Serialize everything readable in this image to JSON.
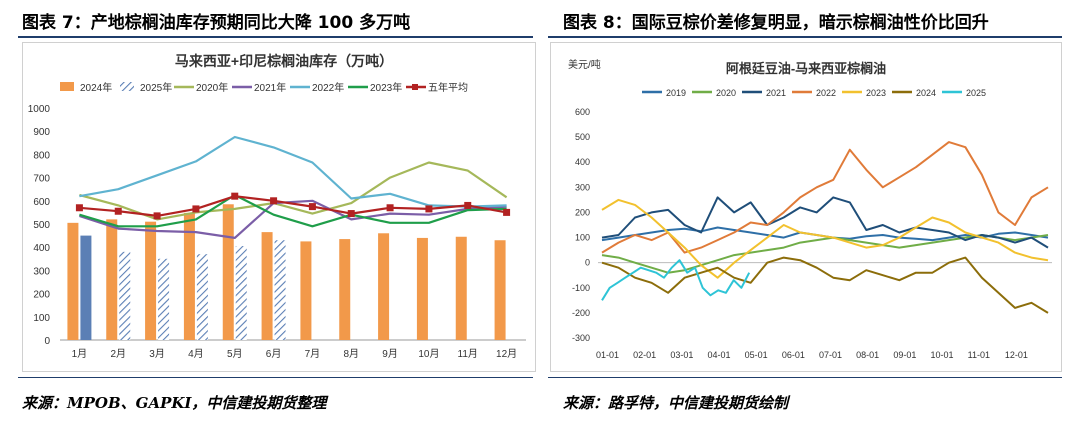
{
  "left": {
    "figure_title": "图表 7：产地棕榈油库存预期同比大降 100 多万吨",
    "source": "来源：MPOB、GAPKI，中信建投期货整理"
  },
  "right": {
    "figure_title": "图表 8：国际豆棕价差修复明显，暗示棕榈油性价比回升",
    "source": "来源：路孚特，中信建投期货绘制"
  },
  "colors": {
    "2024": "#f2994a",
    "2025": "#5b7fb5",
    "2020": "#a5b85a",
    "2021": "#7b5ea7",
    "2022": "#5fb3d0",
    "2023": "#1f9e4a",
    "avg": "#b22222",
    "rule": "#1f3d6b",
    "s2019": "#2e6fa7",
    "s2020": "#70ad47",
    "s2021": "#1f4e79",
    "s2022": "#e07b39",
    "s2023": "#f2c12e",
    "s2024": "#8c6d0a",
    "s2025": "#2ec4d6"
  },
  "chart_data": [
    {
      "type": "bar",
      "title": "马来西亚+印尼棕榈油库存（万吨）",
      "categories": [
        "1月",
        "2月",
        "3月",
        "4月",
        "5月",
        "6月",
        "7月",
        "8月",
        "9月",
        "10月",
        "11月",
        "12月"
      ],
      "ylim": [
        0,
        1000
      ],
      "yticks": [
        0,
        100,
        200,
        300,
        400,
        500,
        600,
        700,
        800,
        900,
        1000
      ],
      "bar_series": [
        {
          "name": "2024年",
          "values": [
            505,
            520,
            510,
            548,
            585,
            465,
            425,
            435,
            460,
            440,
            445,
            430
          ]
        },
        {
          "name": "2025年",
          "values": [
            450,
            380,
            350,
            370,
            405,
            430,
            null,
            null,
            null,
            null,
            null,
            null
          ],
          "hatched": true,
          "highlight_first": true
        }
      ],
      "line_series": [
        {
          "name": "2020年",
          "values": [
            625,
            580,
            520,
            550,
            565,
            590,
            545,
            590,
            700,
            765,
            730,
            615
          ]
        },
        {
          "name": "2021年",
          "values": [
            535,
            480,
            470,
            465,
            440,
            590,
            600,
            520,
            545,
            540,
            565,
            575
          ]
        },
        {
          "name": "2022年",
          "values": [
            620,
            650,
            710,
            770,
            875,
            830,
            765,
            610,
            630,
            580,
            575,
            580
          ]
        },
        {
          "name": "2023年",
          "values": [
            540,
            490,
            490,
            520,
            625,
            540,
            490,
            540,
            505,
            505,
            560,
            565
          ]
        },
        {
          "name": "五年平均",
          "values": [
            570,
            555,
            535,
            565,
            620,
            600,
            575,
            545,
            570,
            565,
            580,
            550
          ],
          "markers": true
        }
      ],
      "legend_placement": "top",
      "grid": false
    },
    {
      "type": "line",
      "title": "阿根廷豆油-马来西亚棕榈油",
      "ylabel": "美元/吨",
      "ylim": [
        -300,
        600
      ],
      "yticks": [
        -300,
        -200,
        -100,
        0,
        100,
        200,
        300,
        400,
        500,
        600
      ],
      "x_ticks": [
        "01-01",
        "02-01",
        "03-01",
        "04-01",
        "05-01",
        "06-01",
        "07-01",
        "08-01",
        "09-01",
        "10-01",
        "11-01",
        "12-01"
      ],
      "series": [
        {
          "name": "2019",
          "values": [
            90,
            100,
            110,
            120,
            130,
            135,
            125,
            140,
            130,
            120,
            110,
            100,
            120,
            110,
            100,
            95,
            105,
            110,
            100,
            95,
            90,
            100,
            110,
            100,
            115,
            120,
            110,
            100
          ]
        },
        {
          "name": "2020",
          "values": [
            30,
            20,
            0,
            -20,
            -40,
            -30,
            -10,
            10,
            30,
            40,
            50,
            60,
            80,
            90,
            100,
            90,
            80,
            70,
            60,
            70,
            80,
            90,
            100,
            110,
            100,
            90,
            100,
            110
          ]
        },
        {
          "name": "2021",
          "values": [
            100,
            110,
            180,
            200,
            210,
            150,
            120,
            260,
            200,
            240,
            150,
            180,
            220,
            200,
            260,
            240,
            130,
            150,
            120,
            140,
            130,
            120,
            90,
            110,
            100,
            80,
            100,
            60
          ]
        },
        {
          "name": "2022",
          "values": [
            40,
            80,
            110,
            90,
            120,
            40,
            60,
            90,
            120,
            160,
            150,
            200,
            260,
            300,
            330,
            450,
            370,
            300,
            340,
            380,
            430,
            480,
            460,
            350,
            200,
            150,
            260,
            300
          ]
        },
        {
          "name": "2023",
          "values": [
            210,
            250,
            230,
            180,
            120,
            60,
            -10,
            -60,
            0,
            50,
            100,
            150,
            120,
            110,
            100,
            80,
            60,
            70,
            100,
            140,
            180,
            160,
            120,
            100,
            80,
            40,
            20,
            10
          ]
        },
        {
          "name": "2024",
          "values": [
            0,
            -20,
            -60,
            -80,
            -120,
            -60,
            -40,
            -20,
            -60,
            -80,
            0,
            20,
            10,
            -20,
            -60,
            -70,
            -30,
            -50,
            -70,
            -40,
            -40,
            0,
            20,
            -60,
            -120,
            -180,
            -160,
            -200
          ]
        },
        {
          "name": "2025",
          "values": [
            -150,
            -100,
            -80,
            -60,
            -40,
            -20,
            -30,
            -40,
            -60,
            -20,
            10,
            -40,
            -20,
            -100,
            -130,
            -110,
            -120,
            -70,
            -100,
            -40
          ]
        }
      ],
      "legend_placement": "top",
      "grid": false
    }
  ]
}
